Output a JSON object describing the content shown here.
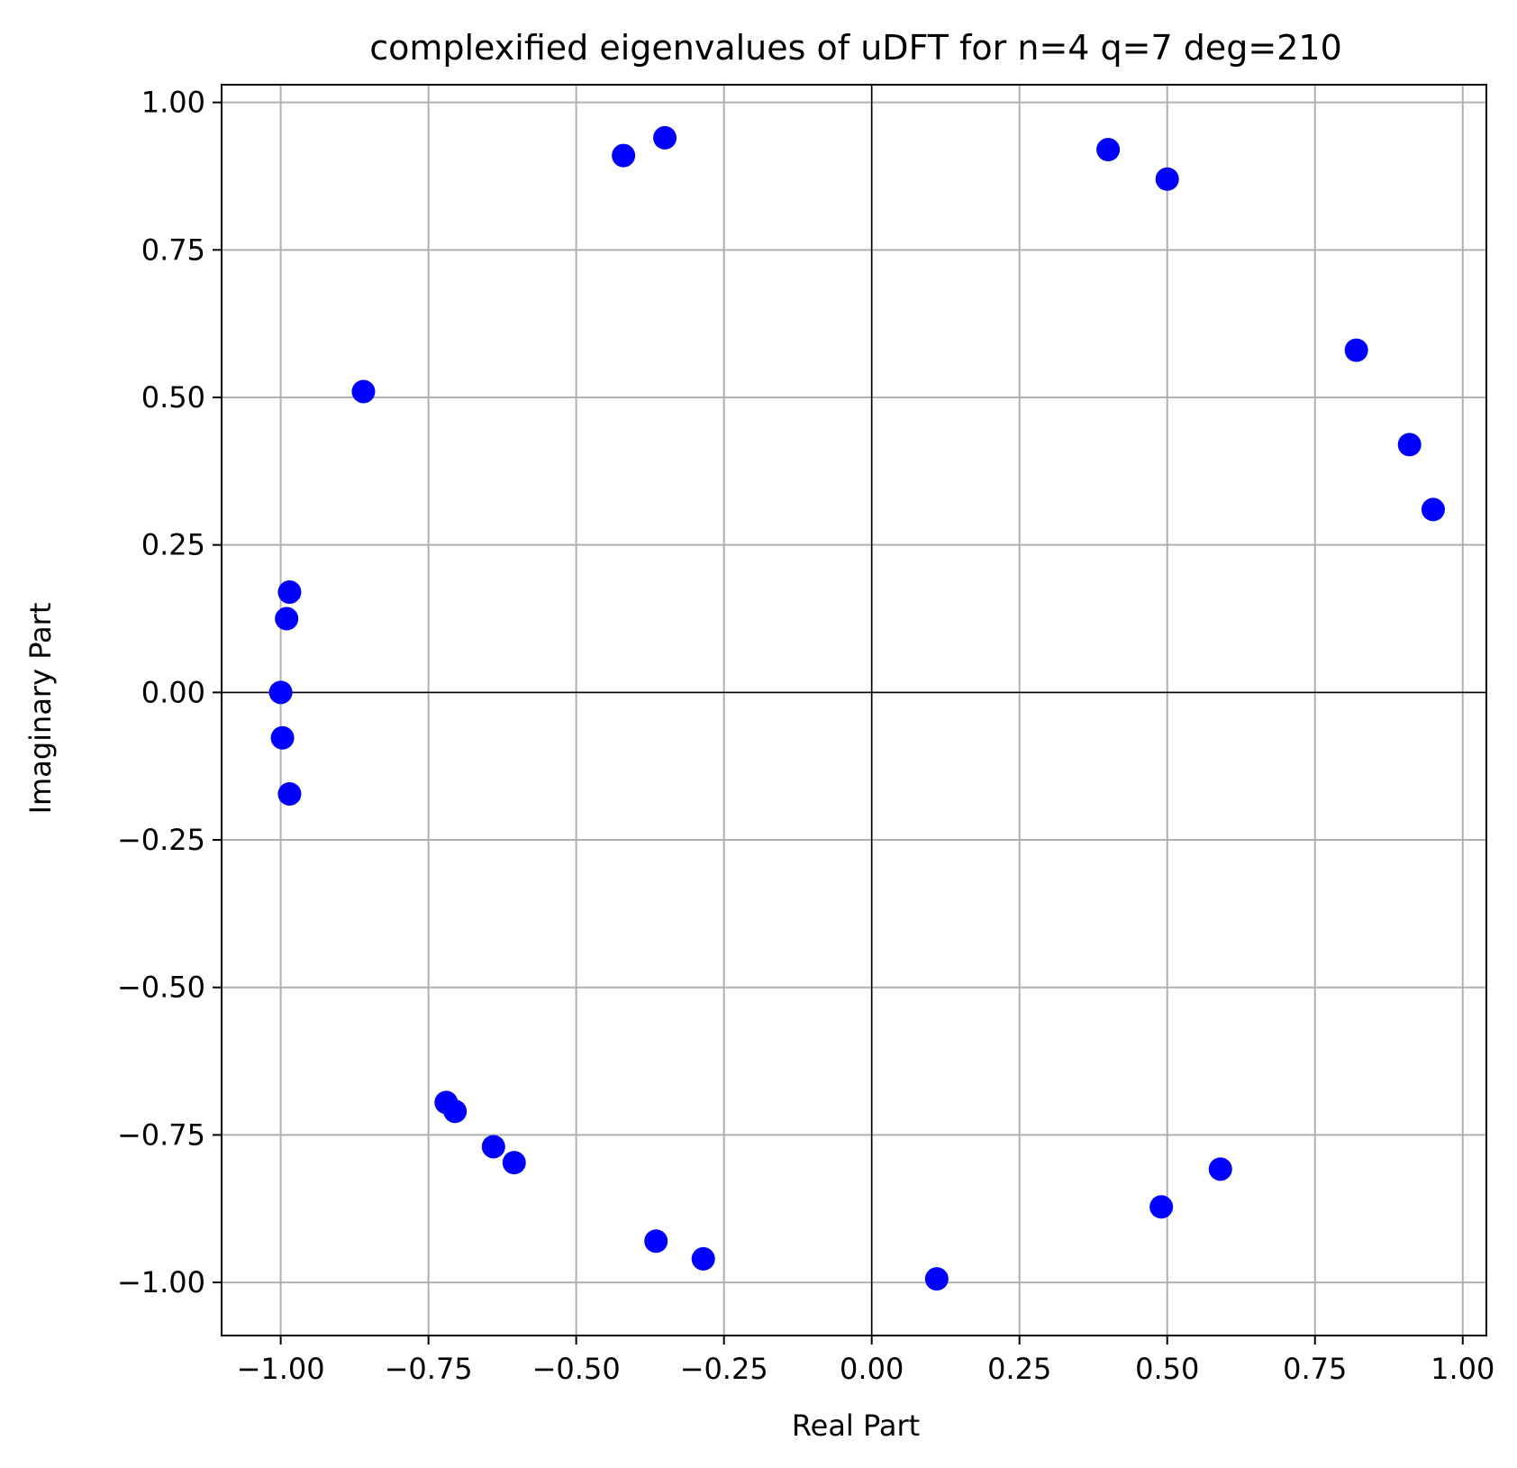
{
  "chart_data": {
    "type": "scatter",
    "title": "complexified eigenvalues of uDFT for n=4 q=7 deg=210",
    "xlabel": "Real Part",
    "ylabel": "Imaginary Part",
    "xlim": [
      -1.1,
      1.04
    ],
    "ylim": [
      -1.09,
      1.03
    ],
    "xticks": [
      -1.0,
      -0.75,
      -0.5,
      -0.25,
      0.0,
      0.25,
      0.5,
      0.75,
      1.0
    ],
    "xtick_labels": [
      "−1.00",
      "−0.75",
      "−0.50",
      "−0.25",
      "0.00",
      "0.25",
      "0.50",
      "0.75",
      "1.00"
    ],
    "yticks": [
      1.0,
      0.75,
      0.5,
      0.25,
      0.0,
      -0.25,
      -0.5,
      -0.75,
      -1.0
    ],
    "ytick_labels": [
      "1.00",
      "0.75",
      "0.50",
      "0.25",
      "0.00",
      "−0.25",
      "−0.50",
      "−0.75",
      "−1.00"
    ],
    "grid": true,
    "zero_lines": true,
    "marker_color": "#0000ff",
    "grid_color": "#b0b0b0",
    "points": [
      {
        "x": -0.42,
        "y": 0.91
      },
      {
        "x": -0.35,
        "y": 0.94
      },
      {
        "x": 0.4,
        "y": 0.92
      },
      {
        "x": 0.5,
        "y": 0.87
      },
      {
        "x": 0.82,
        "y": 0.58
      },
      {
        "x": 0.91,
        "y": 0.42
      },
      {
        "x": 0.95,
        "y": 0.31
      },
      {
        "x": -0.86,
        "y": 0.51
      },
      {
        "x": -0.985,
        "y": 0.17
      },
      {
        "x": -0.99,
        "y": 0.125
      },
      {
        "x": -1.0,
        "y": 0.0
      },
      {
        "x": -0.997,
        "y": -0.077
      },
      {
        "x": -0.985,
        "y": -0.172
      },
      {
        "x": -0.72,
        "y": -0.695
      },
      {
        "x": -0.705,
        "y": -0.71
      },
      {
        "x": -0.64,
        "y": -0.77
      },
      {
        "x": -0.605,
        "y": -0.797
      },
      {
        "x": -0.365,
        "y": -0.93
      },
      {
        "x": -0.285,
        "y": -0.96
      },
      {
        "x": 0.11,
        "y": -0.994
      },
      {
        "x": 0.49,
        "y": -0.872
      },
      {
        "x": 0.59,
        "y": -0.808
      }
    ]
  }
}
